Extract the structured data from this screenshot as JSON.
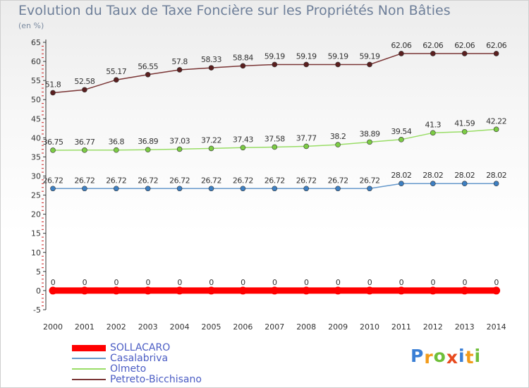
{
  "title": "Evolution du Taux de Taxe Foncière sur les Propriétés Non Bâties",
  "subtitle": "(en %)",
  "logo": {
    "text": "Proxiti",
    "letters": [
      "P",
      "r",
      "o",
      "x",
      "i",
      "t",
      "i"
    ],
    "colors": [
      "#3a7fd5",
      "#f29b1a",
      "#6fbf3a",
      "#e84a1e",
      "#3a7fd5",
      "#f29b1a",
      "#6fbf3a"
    ]
  },
  "chart_data": {
    "type": "line",
    "title": "Evolution du Taux de Taxe Foncière sur les Propriétés Non Bâties",
    "ylabel": "(en %)",
    "xlabel": "",
    "ylim": [
      -5,
      65
    ],
    "yticks": [
      -5,
      0,
      5,
      10,
      15,
      20,
      25,
      30,
      35,
      40,
      45,
      50,
      55,
      60,
      65
    ],
    "grid": false,
    "legend_position": "bottom-left",
    "x": [
      "2000",
      "2001",
      "2002",
      "2003",
      "2004",
      "2005",
      "2006",
      "2007",
      "2008",
      "2009",
      "2010",
      "2011",
      "2012",
      "2013",
      "2014"
    ],
    "series": [
      {
        "name": "SOLLACARO",
        "color": "#ff0000",
        "marker_color": "#ff0000",
        "width": 9,
        "values": [
          0,
          0,
          0,
          0,
          0,
          0,
          0,
          0,
          0,
          0,
          0,
          0,
          0,
          0,
          0
        ],
        "labels": [
          "0",
          "0",
          "0",
          "0",
          "0",
          "0",
          "0",
          "0",
          "0",
          "0",
          "0",
          "0",
          "0",
          "0",
          "0"
        ]
      },
      {
        "name": "Casalabriva",
        "color": "#6699cc",
        "marker_color": "#3d7fc2",
        "width": 1.5,
        "values": [
          26.72,
          26.72,
          26.72,
          26.72,
          26.72,
          26.72,
          26.72,
          26.72,
          26.72,
          26.72,
          26.72,
          28.02,
          28.02,
          28.02,
          28.02
        ],
        "labels": [
          "26.72",
          "26.72",
          "26.72",
          "26.72",
          "26.72",
          "26.72",
          "26.72",
          "26.72",
          "26.72",
          "26.72",
          "26.72",
          "28.02",
          "28.02",
          "28.02",
          "28.02"
        ]
      },
      {
        "name": "Olmeto",
        "color": "#99dd66",
        "marker_color": "#7ccc44",
        "width": 1.5,
        "values": [
          36.75,
          36.77,
          36.8,
          36.89,
          37.03,
          37.22,
          37.43,
          37.58,
          37.77,
          38.2,
          38.89,
          39.54,
          41.3,
          41.59,
          42.22
        ],
        "labels": [
          "36.75",
          "36.77",
          "36.8",
          "36.89",
          "37.03",
          "37.22",
          "37.43",
          "37.58",
          "37.77",
          "38.2",
          "38.89",
          "39.54",
          "41.3",
          "41.59",
          "42.22"
        ]
      },
      {
        "name": "Petreto-Bicchisano",
        "color": "#7a3535",
        "marker_color": "#5a1f1f",
        "width": 1.5,
        "values": [
          51.8,
          52.58,
          55.17,
          56.55,
          57.8,
          58.33,
          58.84,
          59.19,
          59.19,
          59.19,
          59.19,
          62.06,
          62.06,
          62.06,
          62.06
        ],
        "labels": [
          "51.8",
          "52.58",
          "55.17",
          "56.55",
          "57.8",
          "58.33",
          "58.84",
          "59.19",
          "59.19",
          "59.19",
          "59.19",
          "62.06",
          "62.06",
          "62.06",
          "62.06"
        ]
      }
    ]
  }
}
